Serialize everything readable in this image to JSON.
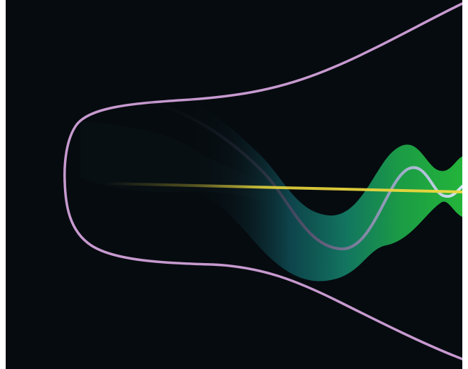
{
  "scene": {
    "background": "#060b0f",
    "outline_color": "#c79ad0",
    "band_color_start": "#0e2a2d",
    "band_color_mid": "#126a6a",
    "band_color_end": "#1ea33a",
    "inner_curve_color": "#6e6480",
    "inner_curve_light": "#c7d8e8",
    "axis_line_color": "#e4d23a"
  }
}
